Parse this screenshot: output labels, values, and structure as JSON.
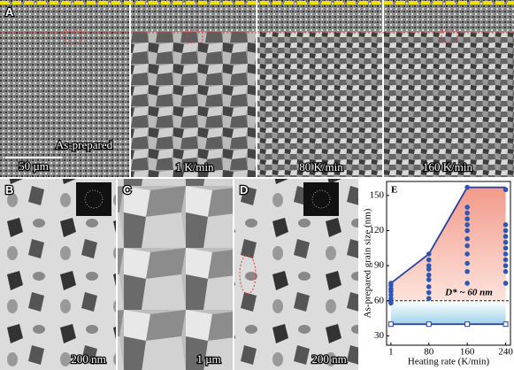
{
  "panel_a": {
    "label": "A",
    "images": [
      {
        "caption": "As-prepared",
        "scale_bar": "50 µm"
      },
      {
        "caption": "1 K/min"
      },
      {
        "caption": "80 K/min"
      },
      {
        "caption": "160 K/min"
      }
    ]
  },
  "panel_b": {
    "label": "B",
    "scale_bar": "200 nm"
  },
  "panel_c": {
    "label": "C",
    "scale_bar": "1 µm"
  },
  "panel_d": {
    "label": "D",
    "scale_bar": "200 nm"
  },
  "chart_data": {
    "type": "scatter",
    "panel_label": "E",
    "x_label": "Heating rate (K/min)",
    "y_label": "As-prepared grain size (nm)",
    "x": [
      1,
      1,
      1,
      1,
      1,
      1,
      1,
      1,
      80,
      80,
      80,
      80,
      80,
      80,
      80,
      80,
      80,
      160,
      160,
      160,
      160,
      160,
      160,
      160,
      160,
      160,
      160,
      160,
      160,
      240,
      240,
      240,
      240,
      240,
      240,
      240,
      240,
      240,
      240,
      240
    ],
    "values": [
      58,
      60,
      62,
      65,
      68,
      70,
      73,
      75,
      62,
      67,
      72,
      78,
      82,
      87,
      90,
      95,
      100,
      75,
      85,
      92,
      100,
      107,
      113,
      120,
      125,
      130,
      135,
      140,
      157,
      75,
      85,
      90,
      95,
      100,
      105,
      110,
      115,
      120,
      125,
      155
    ],
    "color": "#2f55b5",
    "xlim": [
      -8,
      250
    ],
    "ylim": [
      22,
      162
    ],
    "xticks": [
      1,
      80,
      160,
      240
    ],
    "yticks": [
      30,
      60,
      90,
      120,
      150
    ],
    "upper_line": {
      "x": [
        1,
        80,
        160,
        240
      ],
      "values": [
        75,
        100,
        157,
        157
      ]
    },
    "lower_line": {
      "x": [
        1,
        80,
        160,
        240
      ],
      "values": [
        40,
        40,
        40,
        40
      ],
      "errors": [
        2,
        2,
        2,
        2
      ]
    },
    "threshold": {
      "value": 60,
      "label": "D* ~ 60 nm"
    }
  }
}
